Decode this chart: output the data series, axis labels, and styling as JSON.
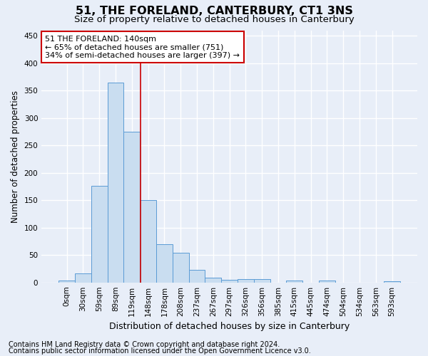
{
  "title": "51, THE FORELAND, CANTERBURY, CT1 3NS",
  "subtitle": "Size of property relative to detached houses in Canterbury",
  "xlabel": "Distribution of detached houses by size in Canterbury",
  "ylabel": "Number of detached properties",
  "bar_values": [
    4,
    17,
    176,
    365,
    275,
    150,
    70,
    54,
    23,
    9,
    5,
    6,
    6,
    0,
    3,
    0,
    3,
    0,
    0,
    0,
    2
  ],
  "bar_labels": [
    "0sqm",
    "30sqm",
    "59sqm",
    "89sqm",
    "119sqm",
    "148sqm",
    "178sqm",
    "208sqm",
    "237sqm",
    "267sqm",
    "297sqm",
    "326sqm",
    "356sqm",
    "385sqm",
    "415sqm",
    "445sqm",
    "474sqm",
    "504sqm",
    "534sqm",
    "563sqm",
    "593sqm"
  ],
  "bar_color": "#c9ddf0",
  "bar_edge_color": "#5b9bd5",
  "vline_x": 4.55,
  "vline_color": "#cc0000",
  "annotation_text": "51 THE FORELAND: 140sqm\n← 65% of detached houses are smaller (751)\n34% of semi-detached houses are larger (397) →",
  "annotation_box_color": "#ffffff",
  "annotation_box_edge": "#cc0000",
  "ylim": [
    0,
    460
  ],
  "yticks": [
    0,
    50,
    100,
    150,
    200,
    250,
    300,
    350,
    400,
    450
  ],
  "background_color": "#e8eef8",
  "grid_color": "#ffffff",
  "footer_line1": "Contains HM Land Registry data © Crown copyright and database right 2024.",
  "footer_line2": "Contains public sector information licensed under the Open Government Licence v3.0.",
  "title_fontsize": 11.5,
  "subtitle_fontsize": 9.5,
  "xlabel_fontsize": 9,
  "ylabel_fontsize": 8.5,
  "tick_fontsize": 7.5,
  "footer_fontsize": 7,
  "ann_fontsize": 8
}
